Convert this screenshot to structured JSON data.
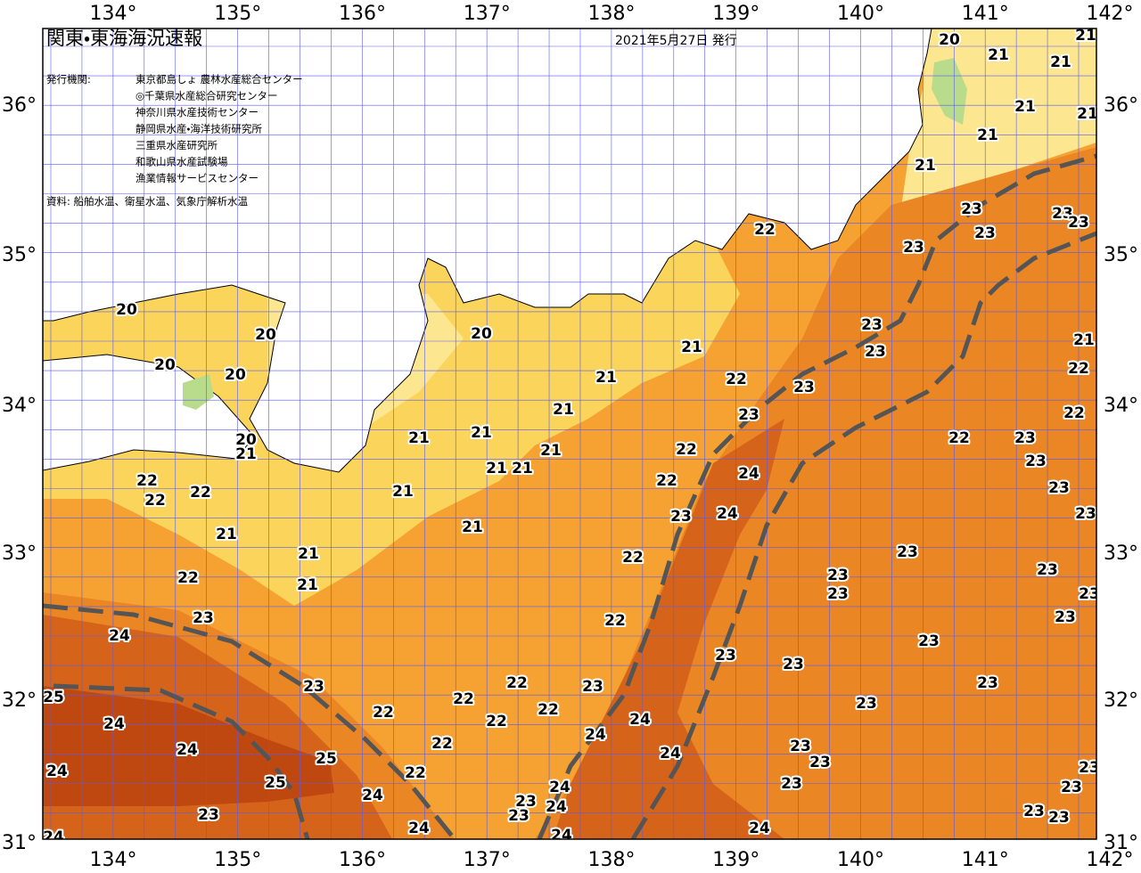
{
  "map": {
    "title": "関東・東海海況速報",
    "issued": "2021年5月27日 発行",
    "publisher_heading": "発行機関:",
    "publishers": [
      "東京都島しょ 農林水産総合センター",
      "◎千葉県水産総合研究センター",
      "神奈川県水産技術センター",
      "静岡県水産・海洋技術研究所",
      "三重県水産研究所",
      "和歌山県水産試験場",
      "漁業情報サービスセンター"
    ],
    "source": "資料: 船舶水温、衛星水温、気象庁解析水温",
    "longitude_labels": [
      "134°",
      "135°",
      "136°",
      "137°",
      "138°",
      "139°",
      "140°",
      "141°",
      "142°"
    ],
    "latitude_labels": [
      "36°",
      "35°",
      "34°",
      "33°",
      "32°",
      "31°"
    ],
    "isotherm_labels": [
      20,
      21,
      21,
      21,
      21,
      21,
      21,
      21,
      23,
      23,
      23,
      23,
      23,
      22,
      20,
      20,
      20,
      20,
      20,
      21,
      21,
      21,
      21,
      21,
      21,
      21,
      21,
      21,
      21,
      21,
      21,
      21,
      20,
      21,
      22,
      22,
      22,
      22,
      22,
      22,
      22,
      22,
      22,
      22,
      22,
      22,
      22,
      22,
      22,
      22,
      22,
      22,
      22,
      21,
      23,
      23,
      23,
      23,
      23,
      23,
      23,
      23,
      23,
      23,
      23,
      23,
      23,
      23,
      23,
      23,
      23,
      23,
      23,
      23,
      23,
      23,
      23,
      23,
      23,
      23,
      23,
      23,
      23,
      23,
      23,
      23,
      23,
      24,
      24,
      24,
      24,
      24,
      24,
      24,
      24,
      24,
      24,
      24,
      24,
      24,
      24,
      24,
      24,
      25,
      25,
      25
    ]
  }
}
